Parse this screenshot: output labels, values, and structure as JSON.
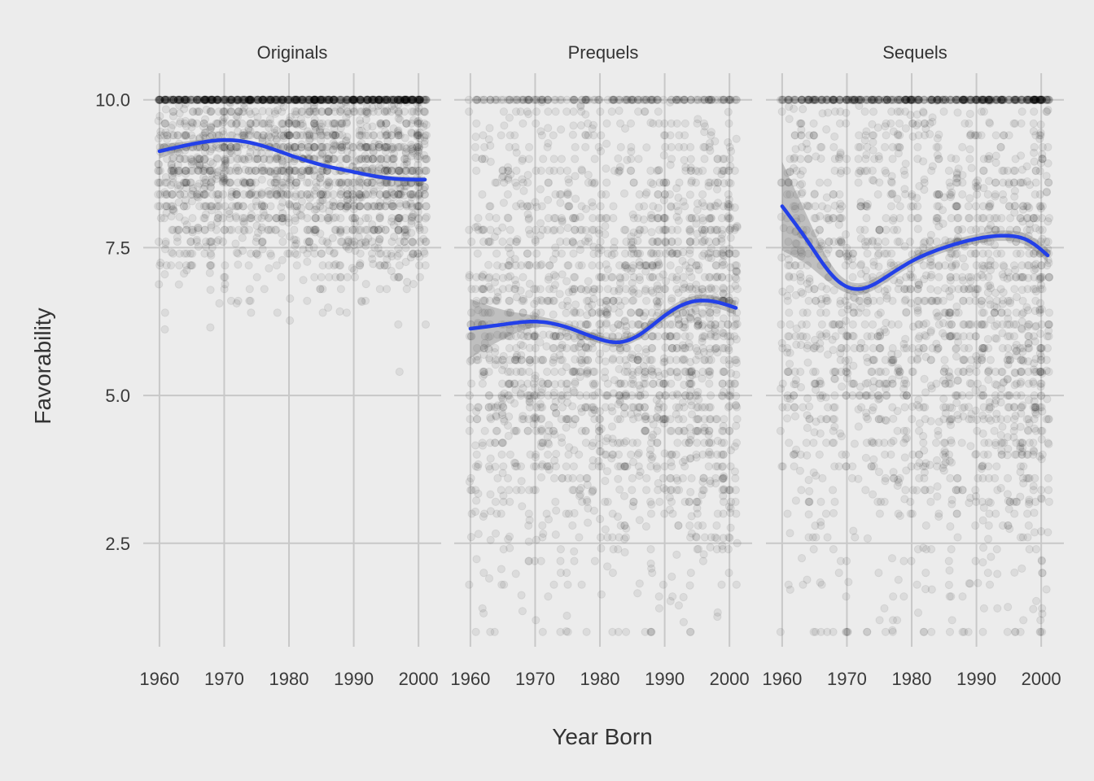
{
  "chart_data": {
    "type": "scatter",
    "facet_by": "film group",
    "xlabel": "Year Born",
    "ylabel": "Favorability",
    "xlim": [
      1957.5,
      2003.5
    ],
    "ylim": [
      0.75,
      10.45
    ],
    "x_ticks": [
      1960,
      1970,
      1980,
      1990,
      2000
    ],
    "x_tick_labels": [
      "1960",
      "1970",
      "1980",
      "1990",
      "2000"
    ],
    "y_ticks": [
      2.5,
      5.0,
      7.5,
      10.0
    ],
    "y_tick_labels": [
      "2.5",
      "5.0",
      "7.5",
      "10.0"
    ],
    "grid": true,
    "point_color": "#000000",
    "point_alpha": 0.07,
    "smooth_color": "#2340e8",
    "band_color": "#6e6e6e",
    "note": "Each facet contains thousands of semi-transparent respondent points (ratings roughly 1 to 10, birth years 1960 to 2001); point clouds are approximated by density parameters. Smoothed trend lines and confidence bands are read from the chart.",
    "facets": [
      {
        "title": "Originals",
        "point_cloud": {
          "count": 2400,
          "mean": 8.9,
          "sd": 1.0,
          "min": 1.0,
          "max": 10.0,
          "x_min": 1960,
          "x_max": 2001,
          "x_skew": 1.1,
          "cap_share": 0.16
        },
        "smooth": {
          "x": [
            1960,
            1965,
            1970,
            1975,
            1980,
            1985,
            1990,
            1995,
            2001
          ],
          "y": [
            9.13,
            9.25,
            9.32,
            9.25,
            9.07,
            8.9,
            8.78,
            8.68,
            8.65
          ],
          "band_halfwidth": [
            0.12,
            0.06,
            0.04,
            0.03,
            0.03,
            0.03,
            0.03,
            0.04,
            0.05
          ]
        }
      },
      {
        "title": "Prequels",
        "point_cloud": {
          "count": 2300,
          "mean": 6.1,
          "sd": 2.1,
          "min": 1.0,
          "max": 10.0,
          "x_min": 1960,
          "x_max": 2001,
          "x_skew": 1.15,
          "cap_share": 0.04
        },
        "smooth": {
          "x": [
            1960,
            1965,
            1970,
            1975,
            1980,
            1983,
            1986,
            1990,
            1994,
            1998,
            2001
          ],
          "y": [
            6.13,
            6.2,
            6.25,
            6.15,
            5.95,
            5.9,
            6.02,
            6.35,
            6.58,
            6.58,
            6.48
          ],
          "band_halfwidth": [
            0.5,
            0.25,
            0.1,
            0.07,
            0.07,
            0.07,
            0.07,
            0.08,
            0.09,
            0.1,
            0.12
          ]
        }
      },
      {
        "title": "Sequels",
        "point_cloud": {
          "count": 2300,
          "mean": 6.6,
          "sd": 2.6,
          "min": 1.0,
          "max": 10.0,
          "x_min": 1960,
          "x_max": 2001,
          "x_skew": 1.2,
          "cap_share": 0.08
        },
        "smooth": {
          "x": [
            1960,
            1964,
            1968,
            1972,
            1976,
            1980,
            1985,
            1990,
            1995,
            1998,
            2001
          ],
          "y": [
            8.2,
            7.6,
            7.0,
            6.8,
            7.0,
            7.27,
            7.5,
            7.65,
            7.7,
            7.62,
            7.37
          ],
          "band_halfwidth": [
            0.75,
            0.4,
            0.15,
            0.1,
            0.09,
            0.08,
            0.08,
            0.08,
            0.09,
            0.1,
            0.12
          ]
        }
      }
    ]
  }
}
